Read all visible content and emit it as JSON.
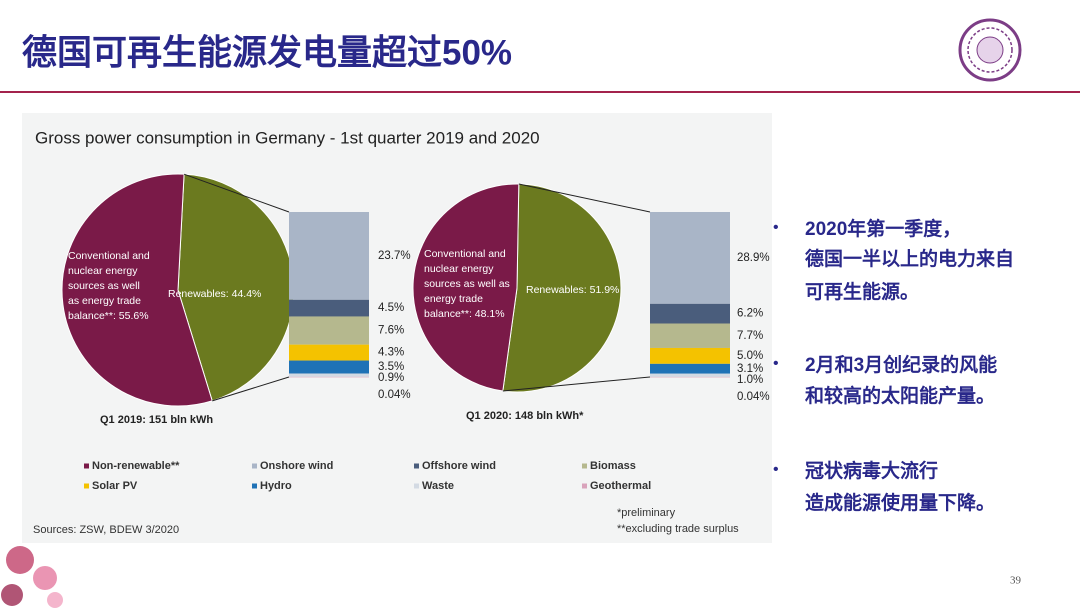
{
  "slide": {
    "title": "德国可再生能源发电量超过50%",
    "page_number": "39",
    "bullets": [
      [
        "2020年第一季度，",
        "德国一半以上的电力来自",
        "可再生能源。"
      ],
      [
        "2月和3月创纪录的风能",
        "和较高的太阳能产量。"
      ],
      [
        "冠状病毒大流行",
        "造成能源使用量下降。"
      ]
    ]
  },
  "figure": {
    "title": "Gross power consumption in Germany - 1st quarter 2019 and 2020",
    "sources": "Sources: ZSW, BDEW 3/2020",
    "notes": [
      "*preliminary",
      "**excluding trade surplus"
    ],
    "legend": [
      {
        "name": "Non-renewable**",
        "color": "#7a1a48"
      },
      {
        "name": "Onshore wind",
        "color": "#a9b5c7"
      },
      {
        "name": "Offshore wind",
        "color": "#4a5d7c"
      },
      {
        "name": "Biomass",
        "color": "#b5b88e"
      },
      {
        "name": "Solar PV",
        "color": "#f4c200"
      },
      {
        "name": "Hydro",
        "color": "#1f72b6"
      },
      {
        "name": "Waste",
        "color": "#d3dae3"
      },
      {
        "name": "Geothermal",
        "color": "#d9a3bb"
      }
    ]
  },
  "chart_data": [
    {
      "type": "pie",
      "caption": "Q1 2019: 151 bln kWh",
      "values": [
        55.6,
        44.4
      ],
      "colors": [
        "#7a1a48",
        "#6b7a1f"
      ],
      "value_labels": [
        [
          "Conventional and",
          "nuclear energy",
          "sources as well",
          "as energy trade",
          "balance**: 55.6%"
        ],
        [
          "Renewables: 44.4%"
        ]
      ]
    },
    {
      "type": "bar",
      "stacked": true,
      "values": [
        23.7,
        4.5,
        7.6,
        4.3,
        3.5,
        0.9,
        0.04
      ],
      "value_labels": [
        "23.7%",
        "4.5%",
        "7.6%",
        "4.3%",
        "3.5%",
        "0.9%",
        "0.04%"
      ]
    },
    {
      "type": "pie",
      "caption": "Q1 2020: 148 bln kWh*",
      "values": [
        48.1,
        51.9
      ],
      "colors": [
        "#7a1a48",
        "#6b7a1f"
      ],
      "value_labels": [
        [
          "Conventional and",
          "nuclear energy",
          "sources as well as",
          "energy trade",
          "balance**: 48.1%"
        ],
        [
          "Renewables: 51.9%"
        ]
      ]
    },
    {
      "type": "bar",
      "stacked": true,
      "values": [
        28.9,
        6.2,
        7.7,
        5.0,
        3.1,
        1.0,
        0.04
      ],
      "value_labels": [
        "28.9%",
        "6.2%",
        "7.7%",
        "5.0%",
        "3.1%",
        "1.0%",
        "0.04%"
      ]
    }
  ]
}
